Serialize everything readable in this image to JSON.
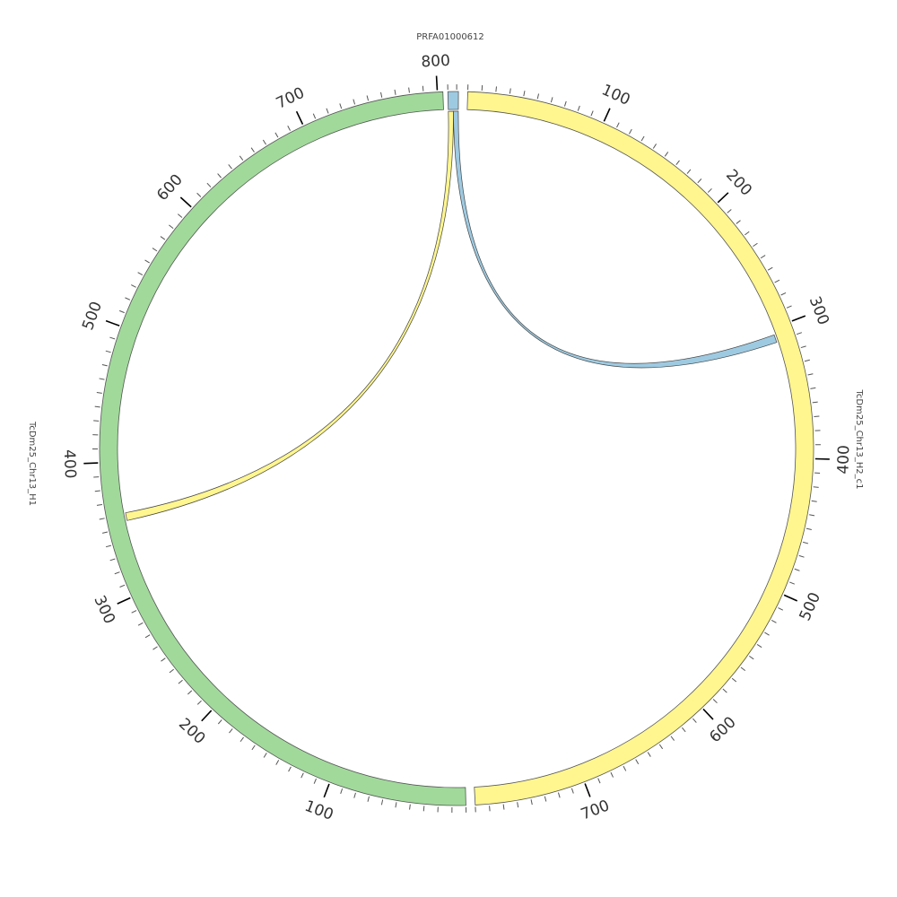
{
  "chart_data": {
    "type": "circos",
    "segments": [
      {
        "id": "PRFA01000612",
        "name": "PRFA01000612",
        "length": 12,
        "color": "#9ECAE1",
        "ticks": {
          "minor": 10,
          "major": 100,
          "labels": []
        }
      },
      {
        "id": "TcDm25_Chr13_H2_c1",
        "name": "TcDm25_Chr13_H2_c1",
        "length": 780,
        "color": "#FFF68F",
        "ticks": {
          "minor": 10,
          "major": 100,
          "labels": [
            "100",
            "200",
            "300",
            "400",
            "500",
            "600",
            "700"
          ]
        }
      },
      {
        "id": "TcDm25_Chr13_H1",
        "name": "TcDm25_Chr13_H1",
        "length": 804,
        "color": "#A1D99B",
        "ticks": {
          "minor": 10,
          "major": 100,
          "labels": [
            "100",
            "200",
            "300",
            "400",
            "500",
            "600",
            "700",
            "800"
          ]
        }
      }
    ],
    "links": [
      {
        "source": "PRFA01000612",
        "source_range": [
          6,
          12
        ],
        "target": "TcDm25_Chr13_H2_c1",
        "target_range": [
          305,
          311
        ],
        "color": "#9ECAE1"
      },
      {
        "source": "PRFA01000612",
        "source_range": [
          0,
          6
        ],
        "target": "TcDm25_Chr13_H1",
        "target_range": [
          355,
          361
        ],
        "color": "#FFF68F"
      }
    ],
    "stroke_color": "#555555",
    "tick_color": "#555555"
  }
}
